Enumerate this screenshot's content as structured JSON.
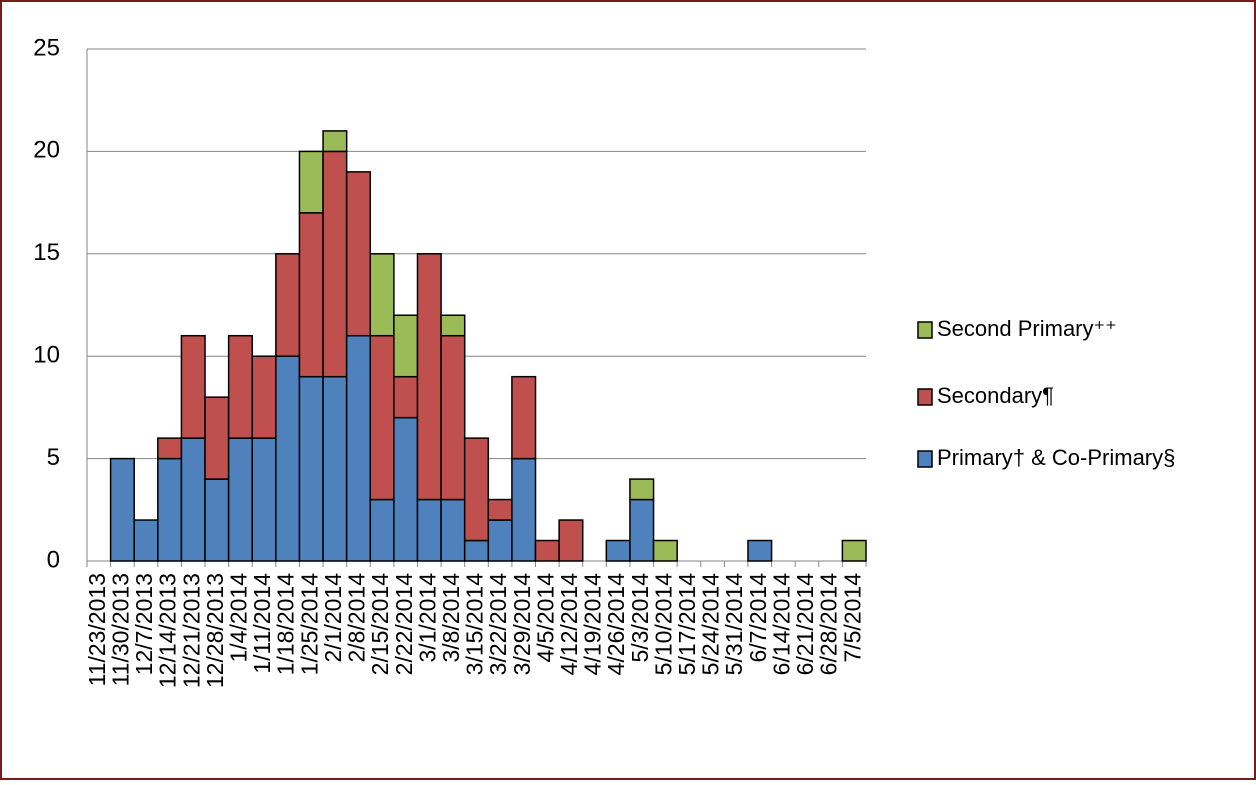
{
  "chart_data": {
    "type": "stacked-bar",
    "categories": [
      "11/23/2013",
      "11/30/2013",
      "12/7/2013",
      "12/14/2013",
      "12/21/2013",
      "12/28/2013",
      "1/4/2014",
      "1/11/2014",
      "1/18/2014",
      "1/25/2014",
      "2/1/2014",
      "2/8/2014",
      "2/15/2014",
      "2/22/2014",
      "3/1/2014",
      "3/8/2014",
      "3/15/2014",
      "3/22/2014",
      "3/29/2014",
      "4/5/2014",
      "4/12/2014",
      "4/19/2014",
      "4/26/2014",
      "5/3/2014",
      "5/10/2014",
      "5/17/2014",
      "5/24/2014",
      "5/31/2014",
      "6/7/2014",
      "6/14/2014",
      "6/21/2014",
      "6/28/2014",
      "7/5/2014"
    ],
    "series": [
      {
        "name": "Primary† & Co-Primary§",
        "color": "#4f81bd",
        "values": [
          0,
          5,
          2,
          5,
          6,
          4,
          6,
          6,
          10,
          9,
          9,
          11,
          3,
          7,
          3,
          3,
          1,
          2,
          5,
          0,
          0,
          0,
          1,
          3,
          0,
          0,
          0,
          0,
          1,
          0,
          0,
          0,
          0
        ]
      },
      {
        "name": "Secondary¶",
        "color": "#c0504d",
        "values": [
          0,
          0,
          0,
          1,
          5,
          4,
          5,
          4,
          5,
          8,
          11,
          8,
          8,
          2,
          12,
          8,
          5,
          1,
          4,
          1,
          2,
          0,
          0,
          0,
          0,
          0,
          0,
          0,
          0,
          0,
          0,
          0,
          0
        ]
      },
      {
        "name": "Second Primary⁺⁺",
        "color": "#9bbb59",
        "values": [
          0,
          0,
          0,
          0,
          0,
          0,
          0,
          0,
          0,
          3,
          1,
          0,
          4,
          3,
          0,
          1,
          0,
          0,
          0,
          0,
          0,
          0,
          0,
          1,
          1,
          0,
          0,
          0,
          0,
          0,
          0,
          0,
          1
        ]
      }
    ],
    "ylim": [
      0,
      25
    ],
    "yticks": [
      0,
      5,
      10,
      15,
      20,
      25
    ],
    "grid": true,
    "legend": "right"
  }
}
